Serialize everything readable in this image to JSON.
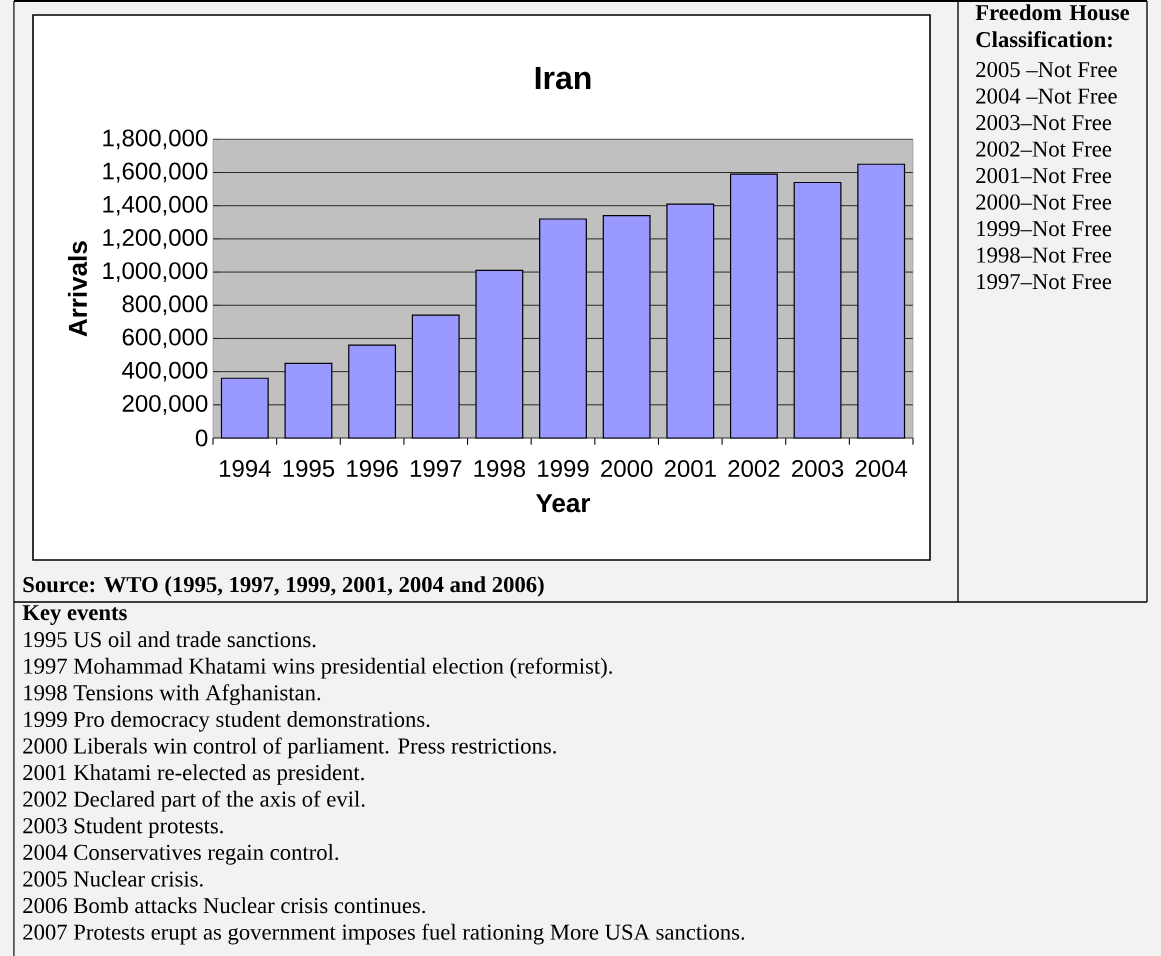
{
  "chart_data": {
    "type": "bar",
    "title": "Iran",
    "xlabel": "Year",
    "ylabel": "Arrivals",
    "categories": [
      "1994",
      "1995",
      "1996",
      "1997",
      "1998",
      "1999",
      "2000",
      "2001",
      "2002",
      "2003",
      "2004"
    ],
    "values": [
      360000,
      450000,
      560000,
      740000,
      1010000,
      1320000,
      1340000,
      1410000,
      1590000,
      1540000,
      1650000
    ],
    "color": "#9999ff",
    "ylim": [
      0,
      1800000
    ],
    "yticks": [
      {
        "value": 0,
        "label": "0"
      },
      {
        "value": 200000,
        "label": "200,000"
      },
      {
        "value": 400000,
        "label": "400,000"
      },
      {
        "value": 600000,
        "label": "600,000"
      },
      {
        "value": 800000,
        "label": "800,000"
      },
      {
        "value": 1000000,
        "label": "1,000,000"
      },
      {
        "value": 1200000,
        "label": "1,200,000"
      },
      {
        "value": 1400000,
        "label": "1,400,000"
      },
      {
        "value": 1600000,
        "label": "1,600,000"
      },
      {
        "value": 1800000,
        "label": "1,800,000"
      }
    ],
    "grid": "y",
    "annotations": [
      "Source: WTO (1995, 1997, 1999, 2001, 2004 and 2006)",
      "Freedom House Classification:",
      "2005 –Not Free",
      "2004 –Not Free",
      "2003–Not Free",
      "2002–Not Free",
      "2001–Not Free",
      "2000–Not Free",
      "1999–Not Free",
      "1998–Not Free",
      "1997–Not Free",
      "Key events",
      "1995 US oil and trade sanctions.",
      "1997 Mohammad Khatami wins presidential election (reformist).",
      "1998 Tensions with Afghanistan.",
      "1999 Pro democracy student demonstrations.",
      "2000 Liberals win control of parliament. Press restrictions.",
      "2001 Khatami re-elected as president.",
      "2002 Declared part of the axis of evil.",
      "2003 Student protests.",
      "2004 Conservatives regain control.",
      "2005 Nuclear crisis.",
      "2006 Bomb attacks Nuclear crisis continues.",
      "2007 Protests erupt as government imposes fuel rationing More USA sanctions."
    ]
  }
}
